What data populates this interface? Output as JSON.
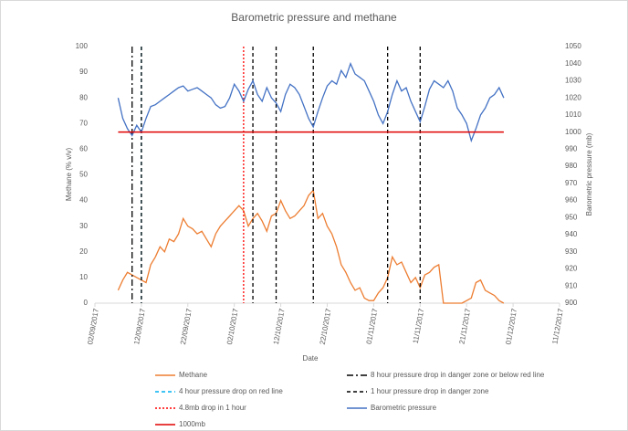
{
  "chart_data": {
    "type": "line",
    "title": "Barometric pressure and methane",
    "xlabel": "Date",
    "ylabel": "Methane (% v/v)",
    "y2label": "Barometric pressure (mb)",
    "xlim": [
      "2017-09-02",
      "2017-12-11"
    ],
    "xticks": [
      {
        "value": "2017-09-02",
        "label": "02/09/2017"
      },
      {
        "value": "2017-09-12",
        "label": "12/09/2017"
      },
      {
        "value": "2017-09-22",
        "label": "22/09/2017"
      },
      {
        "value": "2017-10-02",
        "label": "02/10/2017"
      },
      {
        "value": "2017-10-12",
        "label": "12/10/2017"
      },
      {
        "value": "2017-10-22",
        "label": "22/10/2017"
      },
      {
        "value": "2017-11-01",
        "label": "01/11/2017"
      },
      {
        "value": "2017-11-11",
        "label": "11/11/2017"
      },
      {
        "value": "2017-11-21",
        "label": "21/11/2017"
      },
      {
        "value": "2017-12-01",
        "label": "01/12/2017"
      },
      {
        "value": "2017-12-11",
        "label": "11/12/2017"
      }
    ],
    "ylim": [
      0,
      100
    ],
    "yticks": [
      0,
      10,
      20,
      30,
      40,
      50,
      60,
      70,
      80,
      90,
      100
    ],
    "y2lim": [
      900,
      1050
    ],
    "y2ticks": [
      900,
      910,
      920,
      930,
      940,
      950,
      960,
      970,
      980,
      990,
      1000,
      1010,
      1020,
      1030,
      1040,
      1050
    ],
    "x": [
      "2017-09-07",
      "2017-09-08",
      "2017-09-09",
      "2017-09-10",
      "2017-09-11",
      "2017-09-12",
      "2017-09-13",
      "2017-09-14",
      "2017-09-15",
      "2017-09-16",
      "2017-09-17",
      "2017-09-18",
      "2017-09-19",
      "2017-09-20",
      "2017-09-21",
      "2017-09-22",
      "2017-09-23",
      "2017-09-24",
      "2017-09-25",
      "2017-09-26",
      "2017-09-27",
      "2017-09-28",
      "2017-09-29",
      "2017-09-30",
      "2017-10-01",
      "2017-10-02",
      "2017-10-03",
      "2017-10-04",
      "2017-10-05",
      "2017-10-06",
      "2017-10-07",
      "2017-10-08",
      "2017-10-09",
      "2017-10-10",
      "2017-10-11",
      "2017-10-12",
      "2017-10-13",
      "2017-10-14",
      "2017-10-15",
      "2017-10-16",
      "2017-10-17",
      "2017-10-18",
      "2017-10-19",
      "2017-10-20",
      "2017-10-21",
      "2017-10-22",
      "2017-10-23",
      "2017-10-24",
      "2017-10-25",
      "2017-10-26",
      "2017-10-27",
      "2017-10-28",
      "2017-10-29",
      "2017-10-30",
      "2017-10-31",
      "2017-11-01",
      "2017-11-02",
      "2017-11-03",
      "2017-11-04",
      "2017-11-05",
      "2017-11-06",
      "2017-11-07",
      "2017-11-08",
      "2017-11-09",
      "2017-11-10",
      "2017-11-11",
      "2017-11-12",
      "2017-11-13",
      "2017-11-14",
      "2017-11-15",
      "2017-11-16",
      "2017-11-17",
      "2017-11-18",
      "2017-11-19",
      "2017-11-20",
      "2017-11-21",
      "2017-11-22",
      "2017-11-23",
      "2017-11-24",
      "2017-11-25",
      "2017-11-26",
      "2017-11-27",
      "2017-11-28",
      "2017-11-29"
    ],
    "series": [
      {
        "name": "Methane",
        "color": "#ed7d31",
        "style": "solid",
        "values": [
          5,
          9,
          12,
          11,
          10,
          9,
          8,
          15,
          18,
          22,
          20,
          25,
          24,
          27,
          33,
          30,
          29,
          27,
          28,
          25,
          22,
          27,
          30,
          32,
          34,
          36,
          38,
          36,
          30,
          33,
          35,
          32,
          28,
          34,
          35,
          40,
          36,
          33,
          34,
          36,
          38,
          42,
          44,
          33,
          35,
          30,
          27,
          22,
          15,
          12,
          8,
          5,
          6,
          2,
          1,
          1,
          4,
          6,
          10,
          18,
          15,
          16,
          12,
          8,
          10,
          6,
          11,
          12,
          14,
          15,
          0,
          0,
          0,
          0,
          0,
          1,
          2,
          8,
          9,
          5,
          4,
          3,
          1,
          0
        ]
      },
      {
        "name": "8 hour pressure drop in danger zone or below red line",
        "color": "#000000",
        "style": "dashdot",
        "events": [
          "2017-09-10"
        ]
      },
      {
        "name": "4 hour pressure drop on red line",
        "color": "#00b0f0",
        "style": "dash",
        "events": [
          "2017-09-12"
        ]
      },
      {
        "name": "1 hour pressure drop in danger zone",
        "color": "#000000",
        "style": "dash",
        "events": [
          "2017-09-12",
          "2017-10-06",
          "2017-10-11",
          "2017-10-19",
          "2017-11-04",
          "2017-11-11"
        ]
      },
      {
        "name": "4.8mb drop in 1 hour",
        "color": "#ff0000",
        "style": "dot",
        "events": [
          "2017-10-04"
        ]
      },
      {
        "name": "Barometric pressure",
        "color": "#4472c4",
        "style": "solid",
        "axis": "y2",
        "values": [
          1020,
          1008,
          1002,
          998,
          1004,
          1000,
          1008,
          1015,
          1016,
          1018,
          1020,
          1022,
          1024,
          1026,
          1027,
          1024,
          1025,
          1026,
          1024,
          1022,
          1020,
          1016,
          1014,
          1015,
          1020,
          1028,
          1024,
          1018,
          1025,
          1030,
          1022,
          1018,
          1026,
          1020,
          1017,
          1012,
          1022,
          1028,
          1026,
          1022,
          1015,
          1008,
          1003,
          1012,
          1020,
          1027,
          1030,
          1028,
          1036,
          1032,
          1040,
          1034,
          1032,
          1030,
          1024,
          1018,
          1010,
          1005,
          1012,
          1022,
          1030,
          1024,
          1026,
          1018,
          1012,
          1006,
          1015,
          1025,
          1030,
          1028,
          1026,
          1030,
          1024,
          1014,
          1010,
          1005,
          995,
          1002,
          1010,
          1014,
          1020,
          1022,
          1026,
          1020
        ]
      },
      {
        "name": "1000mb",
        "color": "#e00000",
        "style": "solid",
        "axis": "y2",
        "level": 1000
      }
    ]
  }
}
